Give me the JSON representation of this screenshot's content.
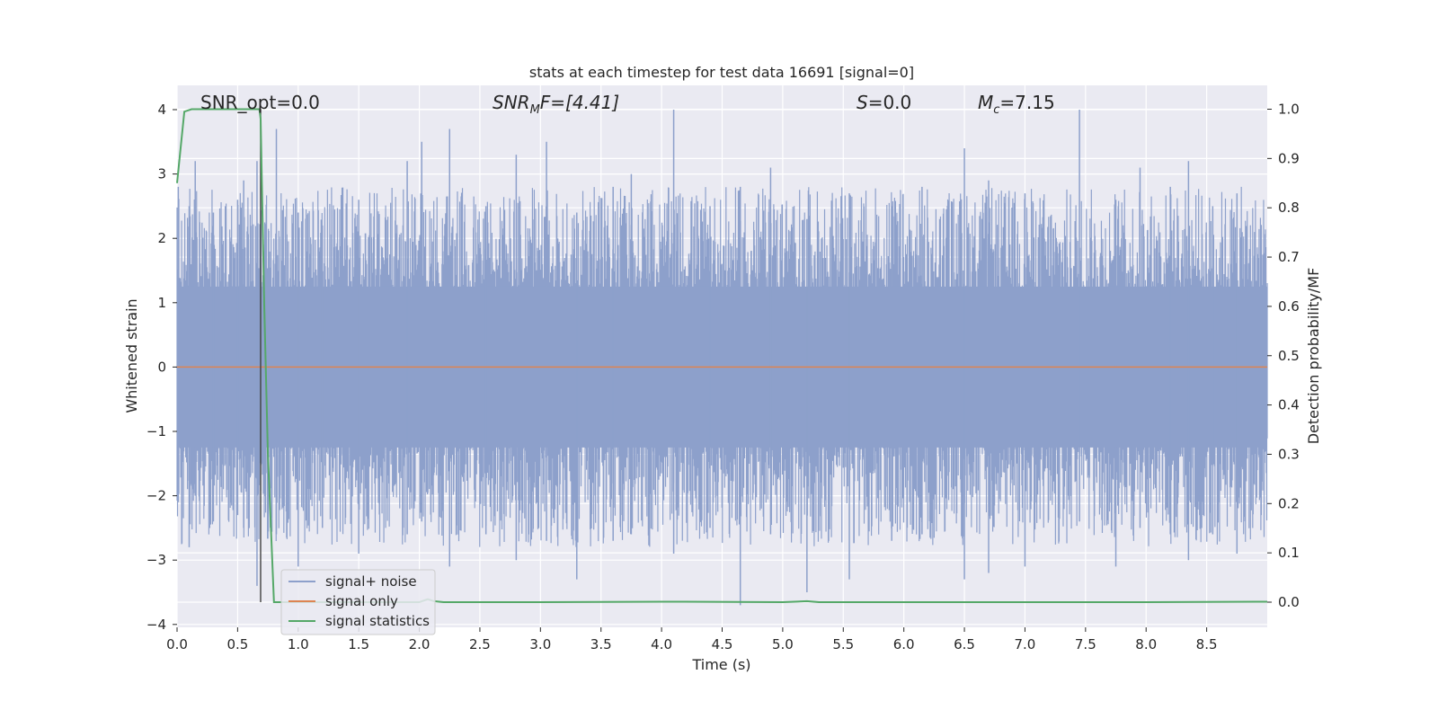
{
  "chart_data": {
    "type": "line",
    "title": "stats at each timestep for test data 16691 [signal=0]",
    "xlabel": "Time (s)",
    "ylabel_left": "Whitened strain",
    "ylabel_right": "Detection probability/MF",
    "xlim": [
      0.0,
      9.0
    ],
    "ylim_left": [
      -4,
      4.4
    ],
    "ylim_right": [
      -0.05,
      1.05
    ],
    "x_ticks": [
      "0.0",
      "0.5",
      "1.0",
      "1.5",
      "2.0",
      "2.5",
      "3.0",
      "3.5",
      "4.0",
      "4.5",
      "5.0",
      "5.5",
      "6.0",
      "6.5",
      "7.0",
      "7.5",
      "8.0",
      "8.5"
    ],
    "y_ticks_left": [
      "4",
      "3",
      "2",
      "1",
      "0",
      "−1",
      "−2",
      "−3",
      "−4"
    ],
    "y_ticks_right": [
      "1.0",
      "0.9",
      "0.8",
      "0.7",
      "0.6",
      "0.5",
      "0.4",
      "0.3",
      "0.2",
      "0.1",
      "0.0"
    ],
    "grid": true,
    "legend_position": "lower-left",
    "annotations": {
      "snr_opt": "SNR_opt=0.0",
      "snr_mf_main": "SNR",
      "snr_mf_sub": "M",
      "snr_mf_tail": "F=[4.41]",
      "s_main": "S",
      "s_tail": "=0.0",
      "mc_main": "M",
      "mc_sub": "c",
      "mc_tail": "=7.15"
    },
    "vertical_marker_x": 0.69,
    "series": [
      {
        "name": "signal+ noise",
        "color": "#8da0cb",
        "axis": "left",
        "description_range": [
          -3.7,
          4.0
        ],
        "peaks": [
          [
            0.01,
            2.8,
            -2.1
          ],
          [
            0.1,
            2.5,
            -2.8
          ],
          [
            0.15,
            3.2,
            -2.0
          ],
          [
            0.3,
            2.4,
            -2.4
          ],
          [
            0.5,
            2.6,
            -2.3
          ],
          [
            0.55,
            2.9,
            -2.5
          ],
          [
            0.66,
            3.2,
            -3.4
          ],
          [
            0.82,
            3.7,
            -2.6
          ],
          [
            1.0,
            2.4,
            -3.1
          ],
          [
            1.2,
            2.2,
            -2.5
          ],
          [
            1.5,
            2.6,
            -2.9
          ],
          [
            1.9,
            3.2,
            -2.6
          ],
          [
            2.02,
            3.5,
            -2.4
          ],
          [
            2.25,
            3.7,
            -3.1
          ],
          [
            2.55,
            2.5,
            -2.6
          ],
          [
            2.8,
            3.3,
            -3.0
          ],
          [
            3.05,
            3.5,
            -2.7
          ],
          [
            3.3,
            2.4,
            -3.3
          ],
          [
            3.6,
            2.8,
            -2.7
          ],
          [
            3.75,
            3.0,
            -2.6
          ],
          [
            4.1,
            4.0,
            -2.9
          ],
          [
            4.4,
            2.5,
            -2.5
          ],
          [
            4.65,
            2.8,
            -3.7
          ],
          [
            4.9,
            3.1,
            -2.6
          ],
          [
            5.2,
            2.3,
            -3.5
          ],
          [
            5.55,
            2.7,
            -3.3
          ],
          [
            5.9,
            2.5,
            -2.7
          ],
          [
            6.15,
            2.8,
            -2.6
          ],
          [
            6.5,
            3.4,
            -3.3
          ],
          [
            6.7,
            2.9,
            -3.2
          ],
          [
            7.0,
            2.7,
            -3.1
          ],
          [
            7.45,
            4.0,
            -2.4
          ],
          [
            7.75,
            2.6,
            -3.1
          ],
          [
            7.95,
            3.1,
            -2.5
          ],
          [
            8.2,
            2.8,
            -2.6
          ],
          [
            8.35,
            3.2,
            -3.0
          ],
          [
            8.55,
            2.5,
            -2.6
          ],
          [
            8.75,
            2.7,
            -2.9
          ],
          [
            8.95,
            2.1,
            -2.3
          ]
        ]
      },
      {
        "name": "signal only",
        "color": "#dd8452",
        "axis": "left",
        "x": [
          0.0,
          9.0
        ],
        "y": [
          0.0,
          0.0
        ]
      },
      {
        "name": "signal statistics",
        "color": "#55a868",
        "axis": "right",
        "x": [
          0.0,
          0.06,
          0.12,
          0.2,
          0.4,
          0.6,
          0.68,
          0.69,
          0.72,
          0.75,
          0.8,
          0.81,
          2.0,
          2.07,
          2.12,
          2.2,
          3.0,
          4.0,
          5.0,
          5.2,
          5.3,
          6.0,
          7.0,
          8.0,
          8.9,
          9.0
        ],
        "y": [
          0.85,
          0.995,
          1.0,
          1.0,
          1.0,
          1.0,
          1.0,
          0.98,
          0.6,
          0.3,
          0.0,
          0.0,
          0.0,
          0.006,
          0.002,
          0.0,
          0.0,
          0.001,
          0.0,
          0.002,
          0.0,
          0.0,
          0.0,
          0.0,
          0.001,
          0.001
        ]
      }
    ]
  }
}
